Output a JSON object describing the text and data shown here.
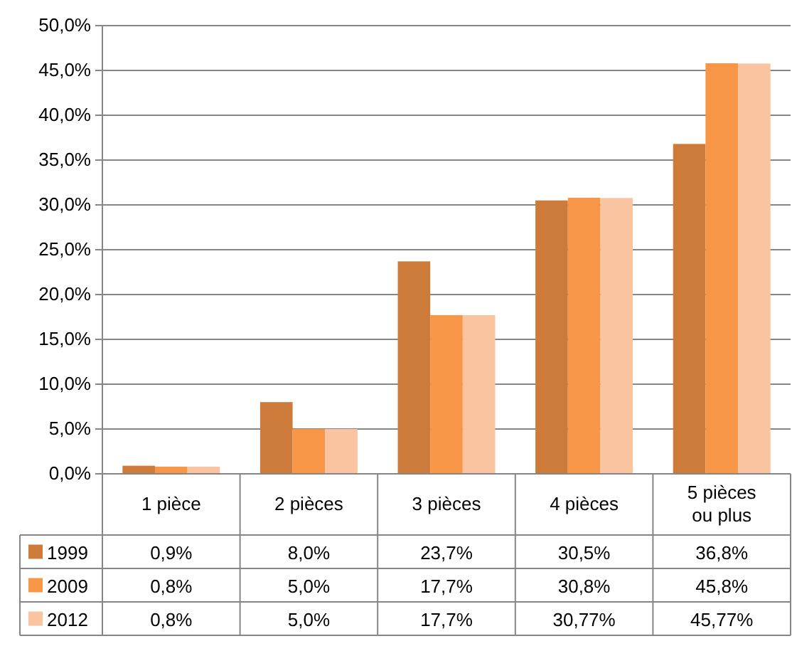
{
  "chart_data": {
    "type": "bar",
    "categories": [
      "1 pièce",
      "2 pièces",
      "3 pièces",
      "4 pièces",
      "5 pièces ou plus"
    ],
    "series": [
      {
        "name": "1999",
        "color": "#cd7b3a",
        "values": [
          0.9,
          8.0,
          23.7,
          30.5,
          36.8
        ],
        "value_labels": [
          "0,9%",
          "8,0%",
          "23,7%",
          "30,5%",
          "36,8%"
        ]
      },
      {
        "name": "2009",
        "color": "#f79646",
        "values": [
          0.8,
          5.0,
          17.7,
          30.8,
          45.8
        ],
        "value_labels": [
          "0,8%",
          "5,0%",
          "17,7%",
          "30,8%",
          "45,8%"
        ]
      },
      {
        "name": "2012",
        "color": "#fac4a0",
        "values": [
          0.8,
          5.0,
          17.7,
          30.77,
          45.77
        ],
        "value_labels": [
          "0,8%",
          "5,0%",
          "17,7%",
          "30,77%",
          "45,77%"
        ]
      }
    ],
    "ylim": [
      0,
      50
    ],
    "yticks": [
      {
        "value": 0,
        "label": "0,0%"
      },
      {
        "value": 5,
        "label": "5,0%"
      },
      {
        "value": 10,
        "label": "10,0%"
      },
      {
        "value": 15,
        "label": "15,0%"
      },
      {
        "value": 20,
        "label": "20,0%"
      },
      {
        "value": 25,
        "label": "25,0%"
      },
      {
        "value": 30,
        "label": "30,0%"
      },
      {
        "value": 35,
        "label": "35,0%"
      },
      {
        "value": 40,
        "label": "40,0%"
      },
      {
        "value": 45,
        "label": "45,0%"
      },
      {
        "value": 50,
        "label": "50,0%"
      }
    ],
    "grid": "y",
    "legend": "bottom left"
  }
}
